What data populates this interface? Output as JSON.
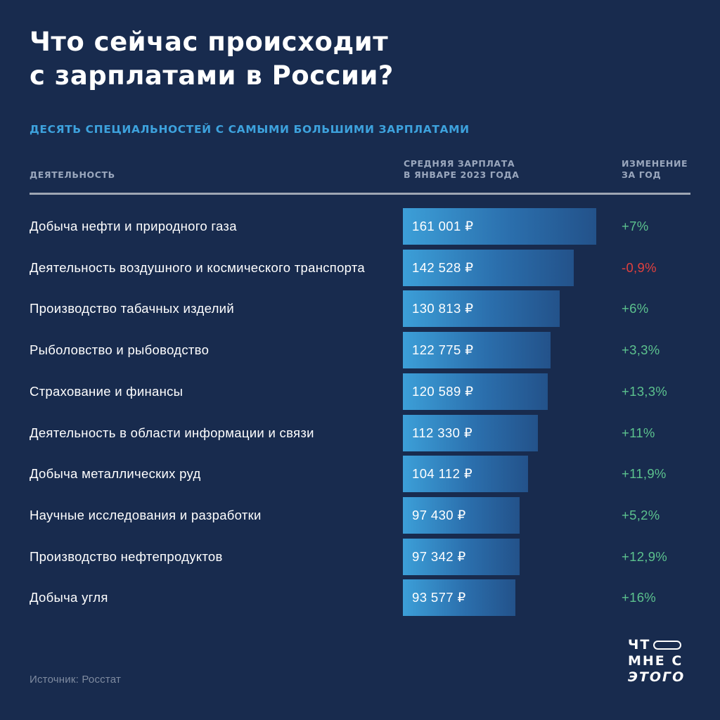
{
  "title": {
    "line1": "Что сейчас происходит",
    "line2": "с зарплатами в России?"
  },
  "subtitle": "ДЕСЯТЬ СПЕЦИАЛЬНОСТЕЙ С САМЫМИ БОЛЬШИМИ ЗАРПЛАТАМИ",
  "columns": {
    "activity": "ДЕЯТЕЛЬНОСТЬ",
    "salary_line1": "СРЕДНЯЯ ЗАРПЛАТА",
    "salary_line2": "В ЯНВАРЕ 2023 ГОДА",
    "change_line1": "ИЗМЕНЕНИЕ",
    "change_line2": "ЗА ГОД"
  },
  "colors": {
    "background": "#182b4e",
    "accent": "#3da2dd",
    "positive": "#5cc28e",
    "negative": "#e0403e"
  },
  "chart_data": {
    "type": "bar",
    "orientation": "horizontal",
    "categories": [
      "Добыча нефти и природного газа",
      "Деятельность воздушного и космического транспорта",
      "Производство табачных изделий",
      "Рыболовство и рыбоводство",
      "Страхование и финансы",
      "Деятельность в области информации и связи",
      "Добыча металлических руд",
      "Научные исследования и разработки",
      "Производство нефтепродуктов",
      "Добыча угля"
    ],
    "values": [
      161001,
      142528,
      130813,
      122775,
      120589,
      112330,
      104112,
      97430,
      97342,
      93577
    ],
    "value_labels": [
      "161 001 ₽",
      "142 528 ₽",
      "130 813 ₽",
      "122 775 ₽",
      "120 589 ₽",
      "112 330 ₽",
      "104 112 ₽",
      "97 430 ₽",
      "97 342 ₽",
      "93 577 ₽"
    ],
    "changes": [
      "+7%",
      "-0,9%",
      "+6%",
      "+3,3%",
      "+13,3%",
      "+11%",
      "+11,9%",
      "+5,2%",
      "+12,9%",
      "+16%"
    ],
    "change_values": [
      7,
      -0.9,
      6,
      3.3,
      13.3,
      11,
      11.9,
      5.2,
      12.9,
      16
    ],
    "title": "ДЕСЯТЬ СПЕЦИАЛЬНОСТЕЙ С САМЫМИ БОЛЬШИМИ ЗАРПЛАТАМИ",
    "xlabel": "СРЕДНЯЯ ЗАРПЛАТА В ЯНВАРЕ 2023 ГОДА",
    "ylabel": "ДЕЯТЕЛЬНОСТЬ",
    "grid": false
  },
  "source": "Источник: Росстат",
  "logo": {
    "line1": "ЧТ",
    "line2": "МНЕ С",
    "line3": "ЭТОГО"
  }
}
